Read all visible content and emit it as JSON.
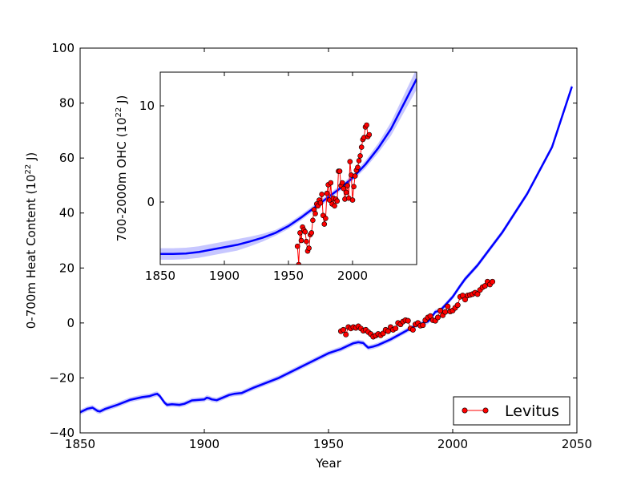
{
  "chart_data": [
    {
      "type": "line",
      "name": "main",
      "xlabel": "Year",
      "ylabel_prefix": "0-700m Heat Content (10",
      "ylabel_sup": "22",
      "ylabel_suffix": " J)",
      "xlim": [
        1850,
        2050
      ],
      "ylim": [
        -40,
        100
      ],
      "xticks": [
        1850,
        1900,
        1950,
        2000,
        2050
      ],
      "yticks": [
        -40,
        -20,
        0,
        20,
        40,
        60,
        80,
        100
      ],
      "grid": false,
      "legend": {
        "position": "bottom-right",
        "entries": [
          "Levitus"
        ]
      },
      "series": [
        {
          "name": "model",
          "kind": "line",
          "color": "#0000ff",
          "band": 0.9,
          "x": [
            1850,
            1853,
            1855,
            1857,
            1858,
            1860,
            1865,
            1870,
            1875,
            1878,
            1880,
            1881,
            1882,
            1884,
            1885,
            1887,
            1890,
            1892,
            1895,
            1900,
            1901,
            1902,
            1903,
            1905,
            1910,
            1912,
            1915,
            1920,
            1930,
            1940,
            1950,
            1955,
            1958,
            1960,
            1962,
            1964,
            1965,
            1966,
            1968,
            1970,
            1975,
            1980,
            1985,
            1988,
            1990,
            1991,
            1993,
            1995,
            2000,
            2003,
            2005,
            2010,
            2015,
            2020,
            2030,
            2040,
            2048
          ],
          "y": [
            -32.5,
            -31.2,
            -30.8,
            -32.0,
            -32.2,
            -31.3,
            -29.8,
            -28.0,
            -27.0,
            -26.6,
            -26.0,
            -25.8,
            -26.5,
            -29.0,
            -29.8,
            -29.6,
            -29.8,
            -29.4,
            -28.2,
            -27.8,
            -27.2,
            -27.4,
            -27.8,
            -28.1,
            -26.2,
            -25.8,
            -25.5,
            -23.5,
            -20.0,
            -15.5,
            -11.0,
            -9.5,
            -8.2,
            -7.4,
            -7.0,
            -7.3,
            -8.2,
            -9.0,
            -8.6,
            -8.0,
            -6.0,
            -3.5,
            -1.0,
            0.0,
            0.5,
            1.5,
            4.0,
            4.5,
            9.5,
            13.5,
            16.0,
            21.0,
            27.0,
            33.0,
            47.0,
            64.0,
            86.0
          ]
        },
        {
          "name": "Levitus",
          "kind": "markers",
          "color": "#ff0000",
          "x": [
            1955,
            1956,
            1957,
            1958,
            1959,
            1960,
            1961,
            1962,
            1963,
            1964,
            1965,
            1966,
            1967,
            1968,
            1969,
            1970,
            1971,
            1972,
            1973,
            1974,
            1975,
            1976,
            1977,
            1978,
            1979,
            1980,
            1981,
            1982,
            1983,
            1984,
            1985,
            1986,
            1987,
            1988,
            1989,
            1990,
            1991,
            1992,
            1993,
            1994,
            1995,
            1996,
            1997,
            1998,
            1999,
            2000,
            2001,
            2002,
            2003,
            2004,
            2005,
            2006,
            2007,
            2008,
            2009,
            2010,
            2011,
            2012,
            2013,
            2014,
            2015,
            2016
          ],
          "y": [
            -3.0,
            -2.5,
            -4.2,
            -1.5,
            -2.0,
            -1.5,
            -1.8,
            -1.2,
            -2.0,
            -2.8,
            -2.5,
            -3.3,
            -4.0,
            -5.0,
            -4.6,
            -4.0,
            -4.5,
            -3.8,
            -2.5,
            -3.0,
            -1.5,
            -2.5,
            -2.0,
            0.0,
            -0.5,
            0.5,
            1.0,
            0.8,
            -2.0,
            -2.5,
            -0.5,
            0.0,
            -1.0,
            -0.8,
            1.0,
            2.0,
            2.5,
            1.0,
            0.8,
            2.0,
            4.5,
            2.8,
            4.0,
            6.0,
            4.2,
            4.5,
            5.5,
            6.5,
            9.5,
            10.0,
            8.5,
            10.0,
            10.2,
            10.5,
            11.0,
            10.5,
            12.0,
            13.0,
            13.5,
            15.0,
            14.0,
            15.0
          ]
        }
      ]
    },
    {
      "type": "line",
      "name": "inset",
      "ylabel_prefix": "700-2000m OHC (10",
      "ylabel_sup": "22",
      "ylabel_suffix": " J)",
      "xlim": [
        1850,
        2050
      ],
      "ylim": [
        -6.5,
        13.5
      ],
      "xticks": [
        1850,
        1900,
        1950,
        2000
      ],
      "yticks": [
        0,
        10
      ],
      "grid": false,
      "series": [
        {
          "name": "model",
          "kind": "line",
          "color": "#0000ff",
          "x": [
            1850,
            1860,
            1870,
            1880,
            1890,
            1900,
            1910,
            1920,
            1930,
            1940,
            1950,
            1960,
            1970,
            1980,
            1990,
            2000,
            2010,
            2020,
            2030,
            2040,
            2050
          ],
          "y": [
            -5.4,
            -5.4,
            -5.35,
            -5.2,
            -4.95,
            -4.7,
            -4.45,
            -4.1,
            -3.7,
            -3.2,
            -2.5,
            -1.6,
            -0.6,
            0.4,
            1.4,
            2.5,
            3.9,
            5.6,
            7.6,
            10.2,
            12.8
          ],
          "band": [
            0.6,
            0.6,
            0.6,
            0.6,
            0.6,
            0.6,
            0.6,
            0.5,
            0.4,
            0.3,
            0.3,
            0.3,
            0.3,
            0.3,
            0.3,
            0.3,
            0.4,
            0.5,
            0.7,
            0.9,
            1.1
          ]
        },
        {
          "name": "Levitus",
          "kind": "markers",
          "color": "#ff0000",
          "x": [
            1957,
            1958,
            1959,
            1960,
            1961,
            1962,
            1963,
            1964,
            1965,
            1966,
            1967,
            1968,
            1969,
            1970,
            1971,
            1972,
            1973,
            1974,
            1975,
            1976,
            1977,
            1978,
            1979,
            1980,
            1981,
            1982,
            1983,
            1984,
            1985,
            1986,
            1987,
            1988,
            1989,
            1990,
            1991,
            1992,
            1993,
            1994,
            1995,
            1996,
            1997,
            1998,
            1999,
            2000,
            2001,
            2002,
            2003,
            2004,
            2005,
            2006,
            2007,
            2008,
            2009,
            2010,
            2011,
            2012,
            2013
          ],
          "y": [
            -4.6,
            -6.5,
            -3.2,
            -4.0,
            -2.6,
            -2.9,
            -3.1,
            -4.1,
            -5.1,
            -4.8,
            -3.4,
            -3.2,
            -1.9,
            -0.8,
            -1.2,
            -0.2,
            -0.4,
            0.2,
            -0.1,
            0.8,
            -1.4,
            -2.3,
            -1.7,
            0.9,
            1.8,
            0.2,
            2.0,
            -0.2,
            0.4,
            -0.4,
            0.3,
            0.1,
            3.2,
            3.2,
            1.7,
            2.0,
            1.4,
            0.3,
            1.0,
            1.7,
            0.4,
            4.2,
            2.8,
            0.2,
            1.6,
            2.7,
            3.3,
            3.6,
            4.3,
            4.8,
            5.7,
            6.5,
            6.7,
            7.8,
            8.0,
            6.8,
            7.0
          ]
        }
      ]
    }
  ]
}
